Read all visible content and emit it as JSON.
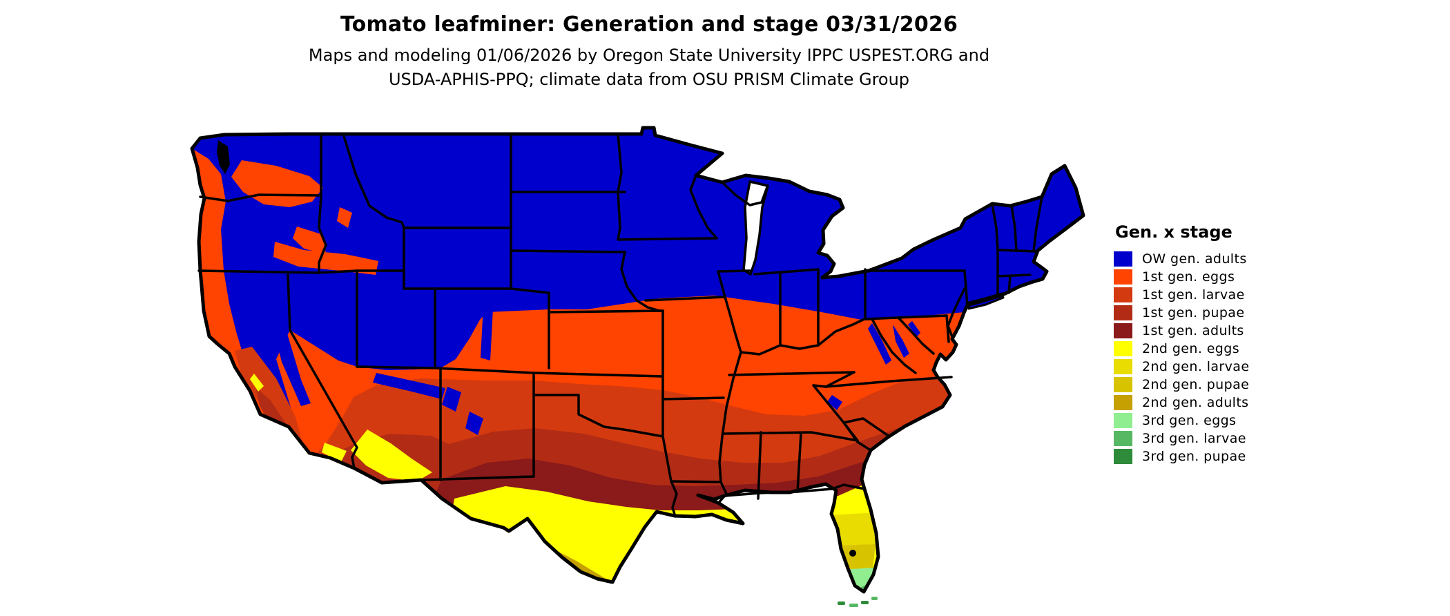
{
  "header": {
    "title": "Tomato leafminer: Generation and stage 03/31/2026",
    "subtitle_line1": "Maps and modeling 01/06/2026 by Oregon State University IPPC USPEST.ORG and",
    "subtitle_line2": "USDA-APHIS-PPQ; climate data from OSU PRISM Climate Group"
  },
  "legend": {
    "title": "Gen. x stage",
    "items": [
      {
        "label": "OW gen. adults",
        "color_key": "ow_adults"
      },
      {
        "label": "1st gen. eggs",
        "color_key": "g1_eggs"
      },
      {
        "label": "1st gen. larvae",
        "color_key": "g1_larvae"
      },
      {
        "label": "1st gen. pupae",
        "color_key": "g1_pupae"
      },
      {
        "label": "1st gen. adults",
        "color_key": "g1_adults"
      },
      {
        "label": "2nd gen. eggs",
        "color_key": "g2_eggs"
      },
      {
        "label": "2nd gen. larvae",
        "color_key": "g2_larvae"
      },
      {
        "label": "2nd gen. pupae",
        "color_key": "g2_pupae"
      },
      {
        "label": "2nd gen. adults",
        "color_key": "g2_adults"
      },
      {
        "label": "3rd gen. eggs",
        "color_key": "g3_eggs"
      },
      {
        "label": "3rd gen. larvae",
        "color_key": "g3_larvae"
      },
      {
        "label": "3rd gen. pupae",
        "color_key": "g3_pupae"
      }
    ]
  },
  "colors": {
    "ow_adults": "#0000CC",
    "g1_eggs": "#FF4300",
    "g1_larvae": "#D43A10",
    "g1_pupae": "#B22C15",
    "g1_adults": "#8B1A1A",
    "g2_eggs": "#FFFF00",
    "g2_larvae": "#E8DC00",
    "g2_pupae": "#D8C300",
    "g2_adults": "#C5A000",
    "g3_eggs": "#90EE90",
    "g3_larvae": "#57B863",
    "g3_pupae": "#2E8B39",
    "water": "#FFFFFF",
    "border": "#000000"
  },
  "map": {
    "type": "us-choropleth",
    "model_date": "03/31/2026",
    "description": "Continental US colored by tomato leafminer generation and life stage: overwintering adults (blue) across the north and mountain west; 1st generation eggs through adults (orange to maroon bands) across the central and southern states; 2nd generation (yellows) along the Gulf coast, south Texas, low deserts and Florida; 3rd generation (greens) in far south Florida and the Keys."
  }
}
